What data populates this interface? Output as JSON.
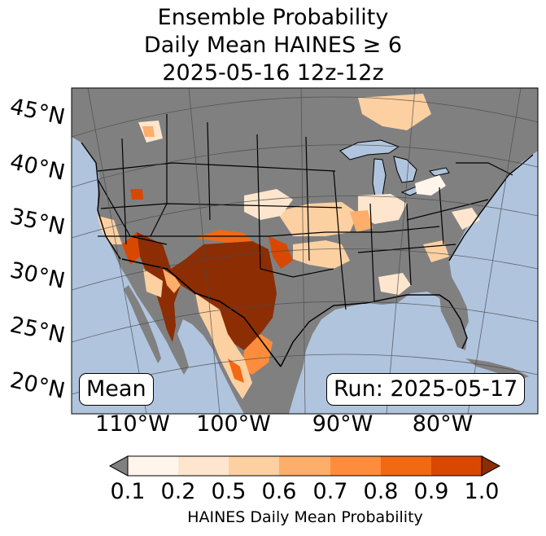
{
  "title": {
    "line1": "Ensemble Probability",
    "line2": "Daily Mean HAINES ≥ 6",
    "line3": "2025-05-16 12z-12z"
  },
  "map": {
    "latitude_labels": [
      "45°N",
      "40°N",
      "35°N",
      "30°N",
      "25°N",
      "20°N"
    ],
    "longitude_labels": [
      "110°W",
      "100°W",
      "90°W",
      "80°W"
    ],
    "mean_label": "Mean",
    "run_label": "Run: 2025-05-17",
    "colors": {
      "ocean": "#b0c4de",
      "land_below": "#808080",
      "borders": "#000000"
    }
  },
  "colorbar": {
    "ticks": [
      "0.1",
      "0.2",
      "0.5",
      "0.6",
      "0.7",
      "0.8",
      "0.9",
      "1.0"
    ],
    "label": "HAINES Daily Mean Probability",
    "under_color": "#808080",
    "colors": [
      "#fff5eb",
      "#fee6ce",
      "#fdd0a2",
      "#fdae6b",
      "#fd8d3c",
      "#f16913",
      "#d94801",
      "#8c2d04"
    ]
  }
}
